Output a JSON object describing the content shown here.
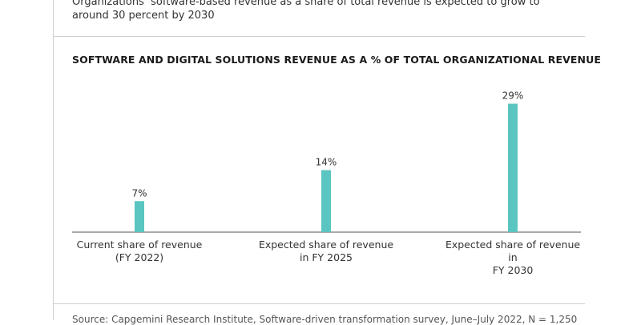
{
  "header": {
    "subtitle_line1": "Organizations’ software-based revenue as a share of total revenue is expected to grow to",
    "subtitle_line2": "around 30 percent by 2030"
  },
  "chart_data": {
    "type": "bar",
    "title": "SOFTWARE AND DIGITAL SOLUTIONS REVENUE AS A % OF TOTAL ORGANIZATIONAL REVENUE",
    "categories": [
      [
        "Current share of revenue",
        "(FY 2022)"
      ],
      [
        "Expected share of revenue",
        "in FY 2025"
      ],
      [
        "Expected share of revenue in",
        "FY 2030"
      ]
    ],
    "values": [
      7,
      14,
      29
    ],
    "data_labels": [
      "7%",
      "14%",
      "29%"
    ],
    "ylim": [
      0,
      30
    ],
    "xlabel": "",
    "ylabel": "",
    "bar_color": "#5bc5c1",
    "grid": false
  },
  "footer": {
    "source": "Source: Capgemini Research Institute, Software-driven transformation survey, June–July 2022, N = 1,250"
  },
  "colors": {
    "bar": "#5bc5c1",
    "axis": "#555555",
    "rule": "#cfcfcf"
  }
}
